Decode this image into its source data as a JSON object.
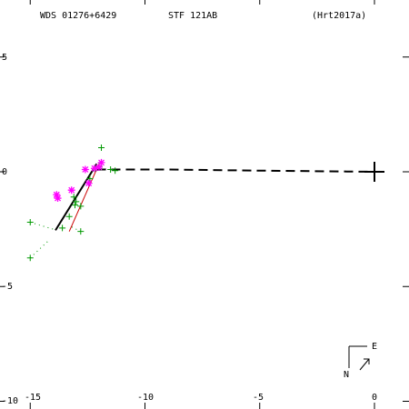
{
  "header": {
    "wds_id": "WDS 01276+6429",
    "discoverer": "STF 121AB",
    "orbit_ref": "(Hrt2017a)"
  },
  "compass": {
    "east_label": "E",
    "north_label": "N"
  },
  "colors": {
    "observations_plus": "#009900",
    "observations_star": "#ff00ff",
    "residual_line": "#cc0000",
    "orbit_line": "#000000"
  },
  "chart_data": {
    "type": "scatter",
    "title": "",
    "xlabel": "",
    "ylabel": "",
    "xlim": [
      1.5,
      -16.5
    ],
    "ylim": [
      -10,
      7.5
    ],
    "x_ticks": [
      -15,
      -10,
      -5,
      0
    ],
    "x_tick_labels": [
      "-15",
      "-10",
      "-5",
      "0"
    ],
    "y_ticks": [
      5,
      0,
      -5,
      -10
    ],
    "y_tick_labels": [
      "5",
      "0",
      "-5",
      "-10"
    ],
    "primary": {
      "x": 0,
      "y": 0
    },
    "orbit_solid": [
      {
        "x": -13.9,
        "y": -2.55
      },
      {
        "x": -12.1,
        "y": 0.35
      }
    ],
    "orbit_dashed": [
      {
        "x": -12.1,
        "y": 0.1
      },
      {
        "x": -9.2,
        "y": 0.1
      },
      {
        "x": -5.0,
        "y": 0.05
      },
      {
        "x": 0.0,
        "y": 0.0
      }
    ],
    "residual_line": [
      {
        "x": -13.3,
        "y": -2.6
      },
      {
        "x": -12.0,
        "y": 0.35
      }
    ],
    "series": [
      {
        "marker": "plus",
        "points": [
          {
            "x": -11.9,
            "y": 1.05
          },
          {
            "x": -11.5,
            "y": 0.1
          },
          {
            "x": -11.3,
            "y": 0.05
          },
          {
            "x": -12.0,
            "y": 0.25
          },
          {
            "x": -12.15,
            "y": 0.15
          },
          {
            "x": -12.4,
            "y": -0.3
          },
          {
            "x": -13.1,
            "y": -1.1
          },
          {
            "x": -13.0,
            "y": -1.3
          },
          {
            "x": -13.05,
            "y": -1.45
          },
          {
            "x": -12.8,
            "y": -1.5
          },
          {
            "x": -13.3,
            "y": -1.95
          },
          {
            "x": -15.0,
            "y": -2.2
          },
          {
            "x": -13.6,
            "y": -2.45
          },
          {
            "x": -12.8,
            "y": -2.6
          },
          {
            "x": -15.0,
            "y": -3.75
          }
        ]
      },
      {
        "marker": "star",
        "points": [
          {
            "x": -11.9,
            "y": 0.4
          },
          {
            "x": -12.0,
            "y": 0.2
          },
          {
            "x": -12.2,
            "y": 0.15
          },
          {
            "x": -12.6,
            "y": 0.1
          },
          {
            "x": -12.45,
            "y": -0.5
          },
          {
            "x": -13.2,
            "y": -0.8
          },
          {
            "x": -13.85,
            "y": -1.0
          },
          {
            "x": -13.8,
            "y": -1.15
          }
        ]
      }
    ],
    "residual_dots": [
      {
        "x": -15.0,
        "y": -3.75
      },
      {
        "x": -14.2,
        "y": -3.0
      },
      {
        "x": -15.0,
        "y": -2.2
      },
      {
        "x": -14.0,
        "y": -2.5
      },
      {
        "x": -12.8,
        "y": -2.6
      },
      {
        "x": -13.3,
        "y": -2.35
      },
      {
        "x": -11.5,
        "y": 0.1
      },
      {
        "x": -12.0,
        "y": 0.15
      }
    ]
  }
}
